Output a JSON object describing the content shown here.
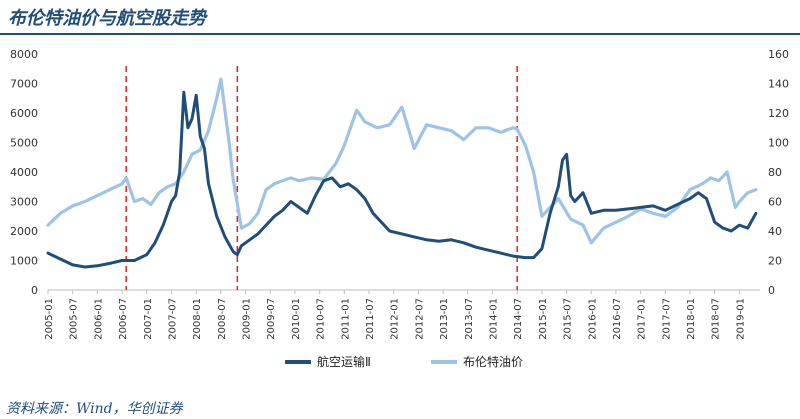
{
  "page": {
    "title": "布伦特油价与航空股走势",
    "source": "资料来源：Wind，华创证券"
  },
  "chart_data": {
    "type": "line",
    "title": "布伦特油价与航空股走势",
    "x_ticks": [
      "2005-01",
      "2005-07",
      "2006-01",
      "2006-07",
      "2007-01",
      "2007-07",
      "2008-01",
      "2008-07",
      "2009-01",
      "2009-07",
      "2010-01",
      "2010-07",
      "2011-01",
      "2011-07",
      "2012-01",
      "2012-07",
      "2013-01",
      "2013-07",
      "2014-01",
      "2014-07",
      "2015-01",
      "2015-07",
      "2016-01",
      "2016-07",
      "2017-01",
      "2017-07",
      "2018-01",
      "2018-07",
      "2019-01"
    ],
    "x_range": [
      "2005-01",
      "2019-06"
    ],
    "y_left": {
      "ticks": [
        0,
        1000,
        2000,
        3000,
        4000,
        5000,
        6000,
        7000,
        8000
      ],
      "range": [
        0,
        8000
      ]
    },
    "y_right": {
      "ticks": [
        0,
        20,
        40,
        60,
        80,
        100,
        120,
        140,
        160
      ],
      "range": [
        0,
        160
      ]
    },
    "vlines": [
      "2006-08",
      "2008-11",
      "2014-07"
    ],
    "vline_color": "#e0221f",
    "grid": false,
    "legend_position": "bottom-center",
    "series": [
      {
        "name": "航空运输Ⅱ",
        "axis": "left",
        "color": "#1f4e79",
        "x": [
          "2005-01",
          "2005-04",
          "2005-07",
          "2005-10",
          "2006-01",
          "2006-04",
          "2006-07",
          "2006-10",
          "2007-01",
          "2007-03",
          "2007-05",
          "2007-06",
          "2007-07",
          "2007-08",
          "2007-09",
          "2007-10",
          "2007-11",
          "2007-12",
          "2008-01",
          "2008-02",
          "2008-03",
          "2008-04",
          "2008-06",
          "2008-08",
          "2008-10",
          "2008-11",
          "2008-12",
          "2009-02",
          "2009-04",
          "2009-06",
          "2009-08",
          "2009-10",
          "2009-12",
          "2010-02",
          "2010-04",
          "2010-06",
          "2010-08",
          "2010-10",
          "2010-12",
          "2011-02",
          "2011-04",
          "2011-06",
          "2011-08",
          "2011-10",
          "2011-12",
          "2012-03",
          "2012-06",
          "2012-09",
          "2012-12",
          "2013-03",
          "2013-06",
          "2013-09",
          "2013-12",
          "2014-03",
          "2014-06",
          "2014-09",
          "2014-11",
          "2015-01",
          "2015-03",
          "2015-05",
          "2015-06",
          "2015-07",
          "2015-08",
          "2015-09",
          "2015-11",
          "2016-01",
          "2016-04",
          "2016-07",
          "2016-10",
          "2017-01",
          "2017-04",
          "2017-07",
          "2017-10",
          "2018-01",
          "2018-03",
          "2018-05",
          "2018-07",
          "2018-09",
          "2018-11",
          "2019-01",
          "2019-03",
          "2019-05"
        ],
        "y": [
          1250,
          1050,
          850,
          780,
          820,
          900,
          1000,
          1000,
          1200,
          1600,
          2200,
          2600,
          3000,
          3200,
          4000,
          6700,
          5500,
          5800,
          6600,
          5200,
          4800,
          3600,
          2500,
          1800,
          1300,
          1200,
          1500,
          1700,
          1900,
          2200,
          2500,
          2700,
          3000,
          2800,
          2600,
          3200,
          3700,
          3800,
          3500,
          3600,
          3400,
          3100,
          2600,
          2300,
          2000,
          1900,
          1800,
          1700,
          1650,
          1700,
          1600,
          1450,
          1350,
          1250,
          1150,
          1100,
          1100,
          1400,
          2600,
          3500,
          4400,
          4600,
          3200,
          3000,
          3300,
          2600,
          2700,
          2700,
          2750,
          2800,
          2850,
          2700,
          2900,
          3100,
          3300,
          3100,
          2300,
          2100,
          2000,
          2200,
          2100,
          2600
        ]
      },
      {
        "name": "布伦特油价",
        "axis": "right",
        "color": "#9dc3e6",
        "x": [
          "2005-01",
          "2005-04",
          "2005-07",
          "2005-10",
          "2006-01",
          "2006-04",
          "2006-07",
          "2006-08",
          "2006-10",
          "2006-12",
          "2007-02",
          "2007-04",
          "2007-06",
          "2007-08",
          "2007-10",
          "2007-12",
          "2008-02",
          "2008-04",
          "2008-06",
          "2008-07",
          "2008-09",
          "2008-10",
          "2008-12",
          "2009-02",
          "2009-04",
          "2009-06",
          "2009-08",
          "2009-10",
          "2009-12",
          "2010-02",
          "2010-05",
          "2010-08",
          "2010-11",
          "2011-01",
          "2011-04",
          "2011-06",
          "2011-09",
          "2011-12",
          "2012-03",
          "2012-06",
          "2012-09",
          "2012-12",
          "2013-03",
          "2013-06",
          "2013-09",
          "2013-12",
          "2014-03",
          "2014-06",
          "2014-07",
          "2014-09",
          "2014-11",
          "2015-01",
          "2015-03",
          "2015-05",
          "2015-08",
          "2015-11",
          "2016-01",
          "2016-04",
          "2016-07",
          "2016-10",
          "2017-01",
          "2017-04",
          "2017-07",
          "2017-10",
          "2018-01",
          "2018-04",
          "2018-06",
          "2018-08",
          "2018-10",
          "2018-12",
          "2019-01",
          "2019-03",
          "2019-05"
        ],
        "y": [
          44,
          52,
          57,
          60,
          64,
          68,
          72,
          76,
          60,
          62,
          58,
          66,
          70,
          72,
          80,
          92,
          95,
          108,
          130,
          143,
          100,
          75,
          42,
          45,
          52,
          68,
          72,
          74,
          76,
          74,
          76,
          75,
          86,
          98,
          122,
          114,
          110,
          112,
          124,
          96,
          112,
          110,
          108,
          102,
          110,
          110,
          107,
          110,
          109,
          98,
          80,
          50,
          56,
          62,
          48,
          44,
          32,
          42,
          46,
          50,
          55,
          52,
          50,
          56,
          68,
          72,
          76,
          74,
          80,
          56,
          60,
          66,
          68
        ]
      }
    ]
  }
}
